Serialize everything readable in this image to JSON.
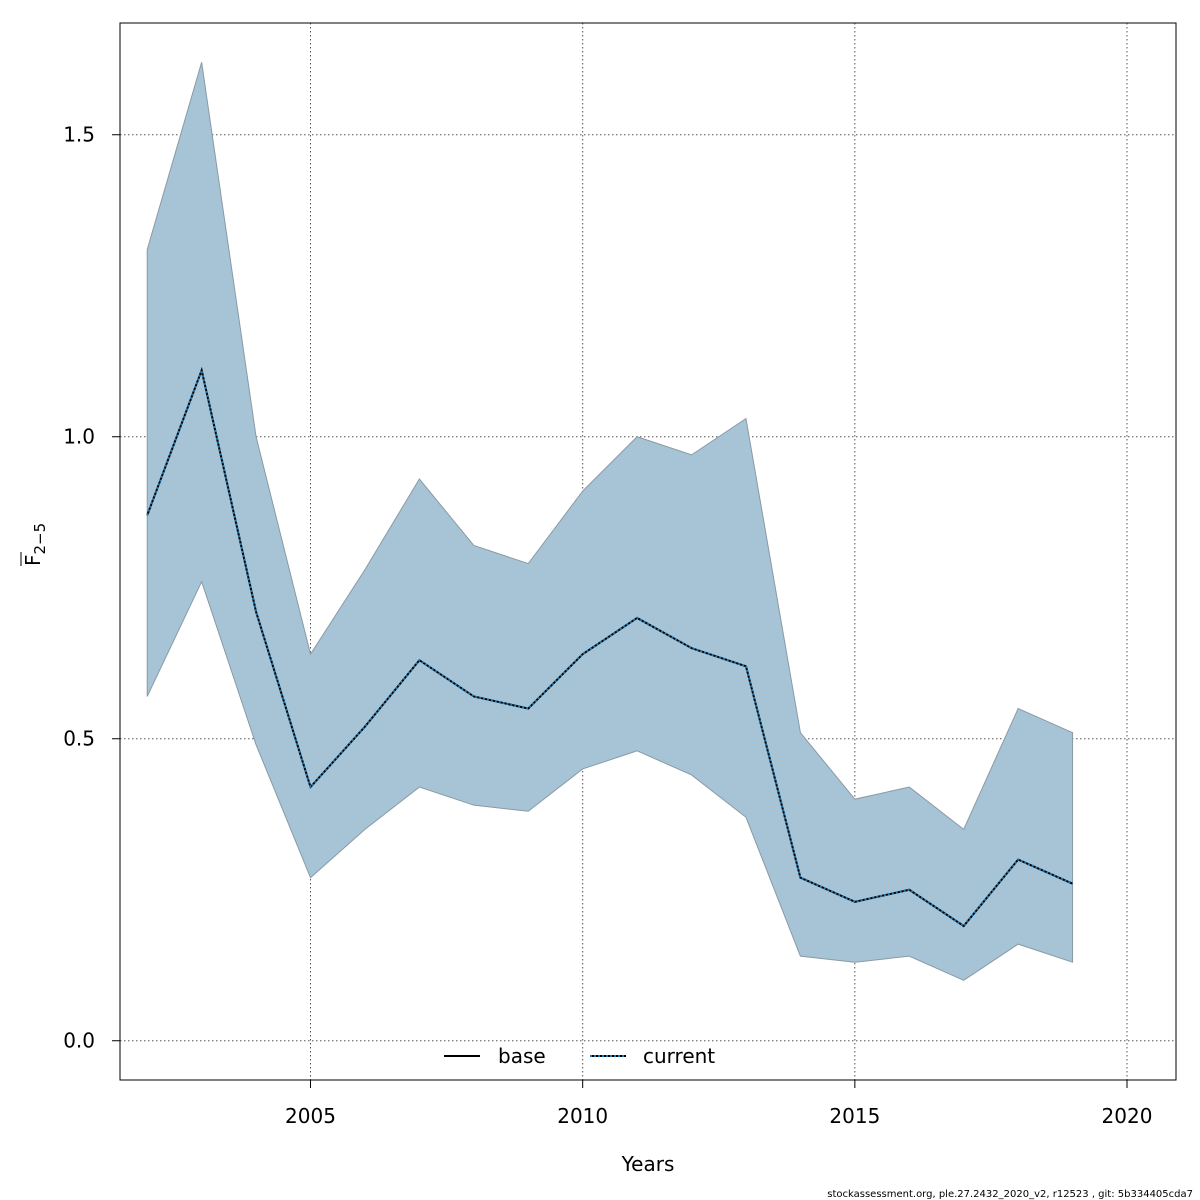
{
  "chart_data": {
    "type": "line",
    "xlabel": "Years",
    "ylabel_main": "F",
    "ylabel_sub": "2−5",
    "xlim": [
      2001.5,
      2020.9
    ],
    "ylim": [
      -0.065,
      1.685
    ],
    "x_ticks": [
      2005,
      2010,
      2015,
      2020
    ],
    "y_ticks": [
      0.0,
      0.5,
      1.0,
      1.5
    ],
    "x_tick_labels": [
      "2005",
      "2010",
      "2015",
      "2020"
    ],
    "y_tick_labels": [
      "0.0",
      "0.5",
      "1.0",
      "1.5"
    ],
    "grid": true,
    "legend_position": "bottom",
    "x": [
      2002,
      2003,
      2004,
      2005,
      2006,
      2007,
      2008,
      2009,
      2010,
      2011,
      2012,
      2013,
      2014,
      2015,
      2016,
      2017,
      2018,
      2019
    ],
    "band": {
      "color": "#a6c4d5",
      "upper": [
        1.31,
        1.62,
        1.0,
        0.64,
        0.78,
        0.93,
        0.82,
        0.79,
        0.91,
        1.0,
        0.97,
        1.03,
        0.51,
        0.4,
        0.42,
        0.35,
        0.55,
        0.51
      ],
      "lower": [
        0.57,
        0.76,
        0.49,
        0.27,
        0.35,
        0.42,
        0.39,
        0.38,
        0.45,
        0.48,
        0.44,
        0.37,
        0.14,
        0.13,
        0.14,
        0.1,
        0.16,
        0.13
      ]
    },
    "series": [
      {
        "name": "base",
        "style": "solid",
        "color": "#000000",
        "values": [
          0.87,
          1.11,
          0.71,
          0.42,
          0.52,
          0.63,
          0.57,
          0.55,
          0.64,
          0.7,
          0.65,
          0.62,
          0.27,
          0.23,
          0.25,
          0.19,
          0.3,
          0.26
        ]
      },
      {
        "name": "current",
        "style": "dotted",
        "color": "#1f78b4",
        "values": [
          0.87,
          1.11,
          0.71,
          0.42,
          0.52,
          0.63,
          0.57,
          0.55,
          0.64,
          0.7,
          0.65,
          0.62,
          0.27,
          0.23,
          0.25,
          0.19,
          0.3,
          0.26
        ]
      }
    ]
  },
  "footer": {
    "text": "stockassessment.org, ple.27.2432_2020_v2, r12523 , git: 5b334405cda7"
  }
}
